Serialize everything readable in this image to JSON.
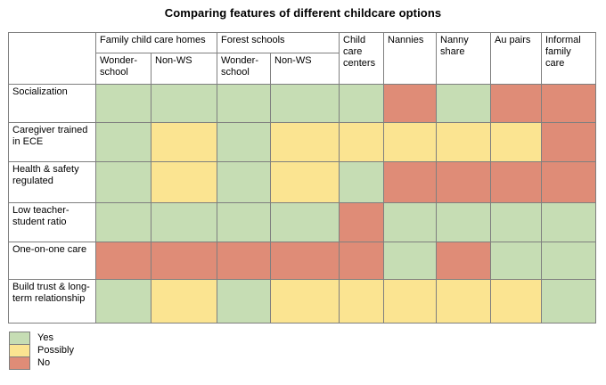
{
  "title": "Comparing features of different childcare options",
  "colors": {
    "yes": "#c6ddb4",
    "possibly": "#fbe491",
    "no": "#df8c77",
    "border": "#7f7f7f"
  },
  "table": {
    "group_headers": [
      {
        "label": "Family child care homes",
        "span": 2
      },
      {
        "label": "Forest schools",
        "span": 2
      }
    ],
    "sub_headers": [
      "Wonder-school",
      "Non-WS",
      "Wonder-school",
      "Non-WS"
    ],
    "single_headers": [
      "Child care centers",
      "Nannies",
      "Nanny share",
      "Au pairs",
      "Informal family care"
    ],
    "rows": [
      {
        "label": "Socialization",
        "values": [
          "yes",
          "yes",
          "yes",
          "yes",
          "yes",
          "no",
          "yes",
          "no",
          "no"
        ]
      },
      {
        "label": "Caregiver trained in ECE",
        "values": [
          "yes",
          "possibly",
          "yes",
          "possibly",
          "possibly",
          "possibly",
          "possibly",
          "possibly",
          "no"
        ]
      },
      {
        "label": "Health & safety regulated",
        "values": [
          "yes",
          "possibly",
          "yes",
          "possibly",
          "yes",
          "no",
          "no",
          "no",
          "no"
        ]
      },
      {
        "label": "Low teacher-student ratio",
        "values": [
          "yes",
          "yes",
          "yes",
          "yes",
          "no",
          "yes",
          "yes",
          "yes",
          "yes"
        ]
      },
      {
        "label": "One-on-one care",
        "values": [
          "no",
          "no",
          "no",
          "no",
          "no",
          "yes",
          "no",
          "yes",
          "yes"
        ]
      },
      {
        "label": "Build trust & long-term relationship",
        "values": [
          "yes",
          "possibly",
          "yes",
          "possibly",
          "possibly",
          "possibly",
          "possibly",
          "possibly",
          "yes"
        ]
      }
    ]
  },
  "legend": [
    {
      "label": "Yes",
      "key": "yes"
    },
    {
      "label": "Possibly",
      "key": "possibly"
    },
    {
      "label": "No",
      "key": "no"
    }
  ],
  "chart_data": {
    "type": "table",
    "title": "Comparing features of different childcare options",
    "columns": [
      "Family child care homes - Wonderschool",
      "Family child care homes - Non-WS",
      "Forest schools - Wonderschool",
      "Forest schools - Non-WS",
      "Child care centers",
      "Nannies",
      "Nanny share",
      "Au pairs",
      "Informal family care"
    ],
    "rows": [
      "Socialization",
      "Caregiver trained in ECE",
      "Health & safety regulated",
      "Low teacher-student ratio",
      "One-on-one care",
      "Build trust & long-term relationship"
    ],
    "values": [
      [
        "Yes",
        "Yes",
        "Yes",
        "Yes",
        "Yes",
        "No",
        "Yes",
        "No",
        "No"
      ],
      [
        "Yes",
        "Possibly",
        "Yes",
        "Possibly",
        "Possibly",
        "Possibly",
        "Possibly",
        "Possibly",
        "No"
      ],
      [
        "Yes",
        "Possibly",
        "Yes",
        "Possibly",
        "Yes",
        "No",
        "No",
        "No",
        "No"
      ],
      [
        "Yes",
        "Yes",
        "Yes",
        "Yes",
        "No",
        "Yes",
        "Yes",
        "Yes",
        "Yes"
      ],
      [
        "No",
        "No",
        "No",
        "No",
        "No",
        "Yes",
        "No",
        "Yes",
        "Yes"
      ],
      [
        "Yes",
        "Possibly",
        "Yes",
        "Possibly",
        "Possibly",
        "Possibly",
        "Possibly",
        "Possibly",
        "Yes"
      ]
    ],
    "legend": [
      "Yes",
      "Possibly",
      "No"
    ],
    "legend_colors": {
      "Yes": "#c6ddb4",
      "Possibly": "#fbe491",
      "No": "#df8c77"
    }
  }
}
